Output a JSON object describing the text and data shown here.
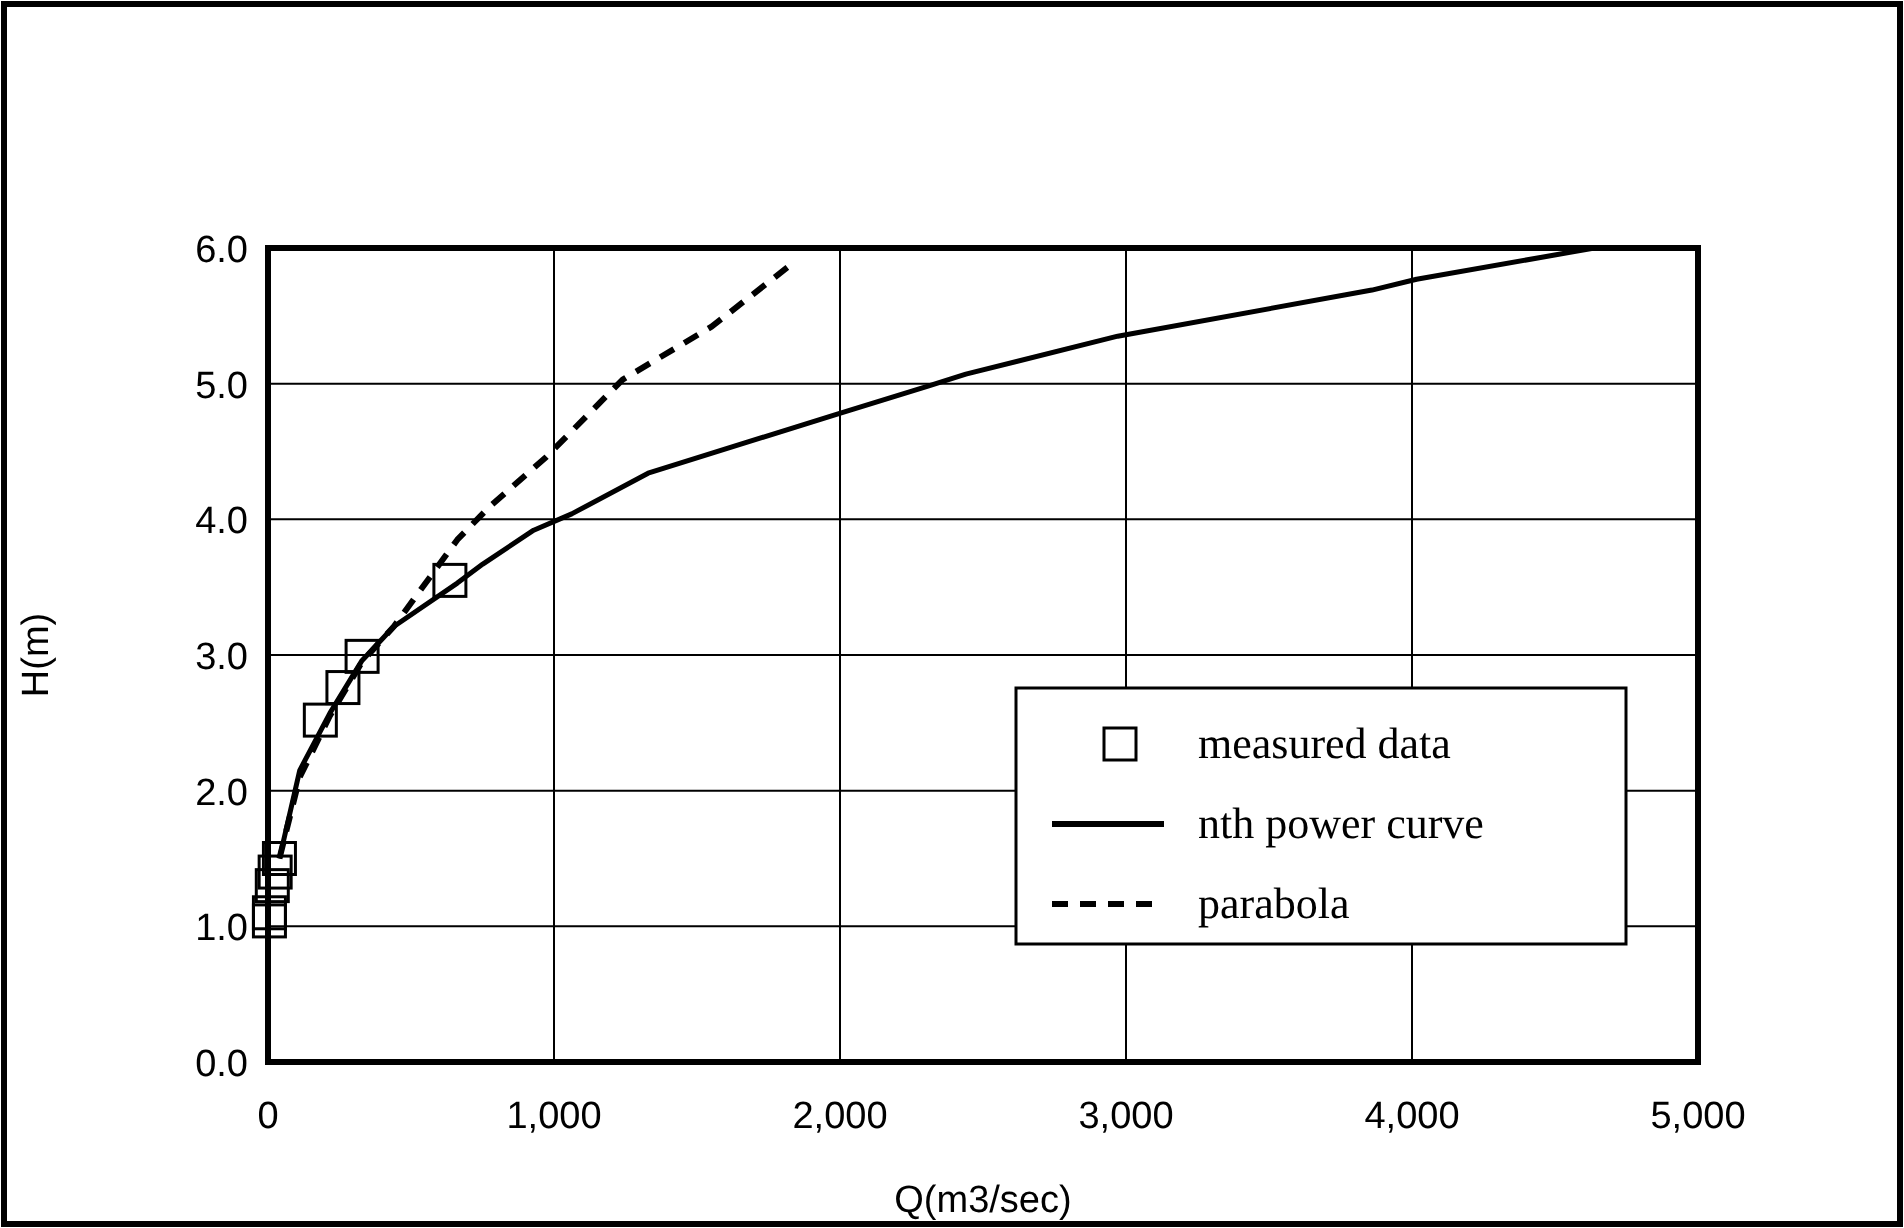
{
  "chart_data": {
    "type": "line",
    "xlabel": "Q(m3/sec)",
    "ylabel": "H(m)",
    "xlim": [
      0,
      5000
    ],
    "ylim": [
      0,
      6
    ],
    "xticks": [
      0,
      {
        "value": 1000,
        "label": "1,000"
      },
      {
        "value": 2000,
        "label": "2,000"
      },
      {
        "value": 3000,
        "label": "3,000"
      },
      {
        "value": 4000,
        "label": "4,000"
      },
      {
        "value": 5000,
        "label": "5,000"
      }
    ],
    "yticks": [
      {
        "value": 0,
        "label": "0.0"
      },
      {
        "value": 1,
        "label": "1.0"
      },
      {
        "value": 2,
        "label": "2.0"
      },
      {
        "value": 3,
        "label": "3.0"
      },
      {
        "value": 4,
        "label": "4.0"
      },
      {
        "value": 5,
        "label": "5.0"
      },
      {
        "value": 6,
        "label": "6.0"
      }
    ],
    "grid": true,
    "legend": "bottom right",
    "series": [
      {
        "name": "measured data",
        "type": "scatter",
        "marker": "square",
        "color": "#000000",
        "x": [
          5,
          5,
          15,
          25,
          40,
          183,
          262,
          329,
          636
        ],
        "values": [
          1.04,
          1.1,
          1.3,
          1.4,
          1.5,
          2.52,
          2.76,
          2.99,
          3.55
        ]
      },
      {
        "name": "nth power curve",
        "line_style": "solid",
        "color": "#000000",
        "x": [
          40,
          111,
          216,
          329,
          440,
          662,
          751,
          929,
          1062,
          1329,
          1996,
          2305,
          2440,
          2971,
          3860,
          4016,
          4638
        ],
        "values": [
          1.5,
          2.15,
          2.57,
          2.96,
          3.21,
          3.53,
          3.67,
          3.92,
          4.04,
          4.34,
          4.78,
          4.98,
          5.07,
          5.35,
          5.69,
          5.77,
          6.0
        ]
      },
      {
        "name": "parabola",
        "line_style": "dashed",
        "color": "#000000",
        "x": [
          40,
          111,
          216,
          329,
          440,
          662,
          773,
          973,
          1240,
          1551,
          1818
        ],
        "values": [
          1.5,
          2.1,
          2.55,
          2.95,
          3.21,
          3.85,
          4.09,
          4.46,
          5.03,
          5.42,
          5.86
        ]
      }
    ]
  }
}
